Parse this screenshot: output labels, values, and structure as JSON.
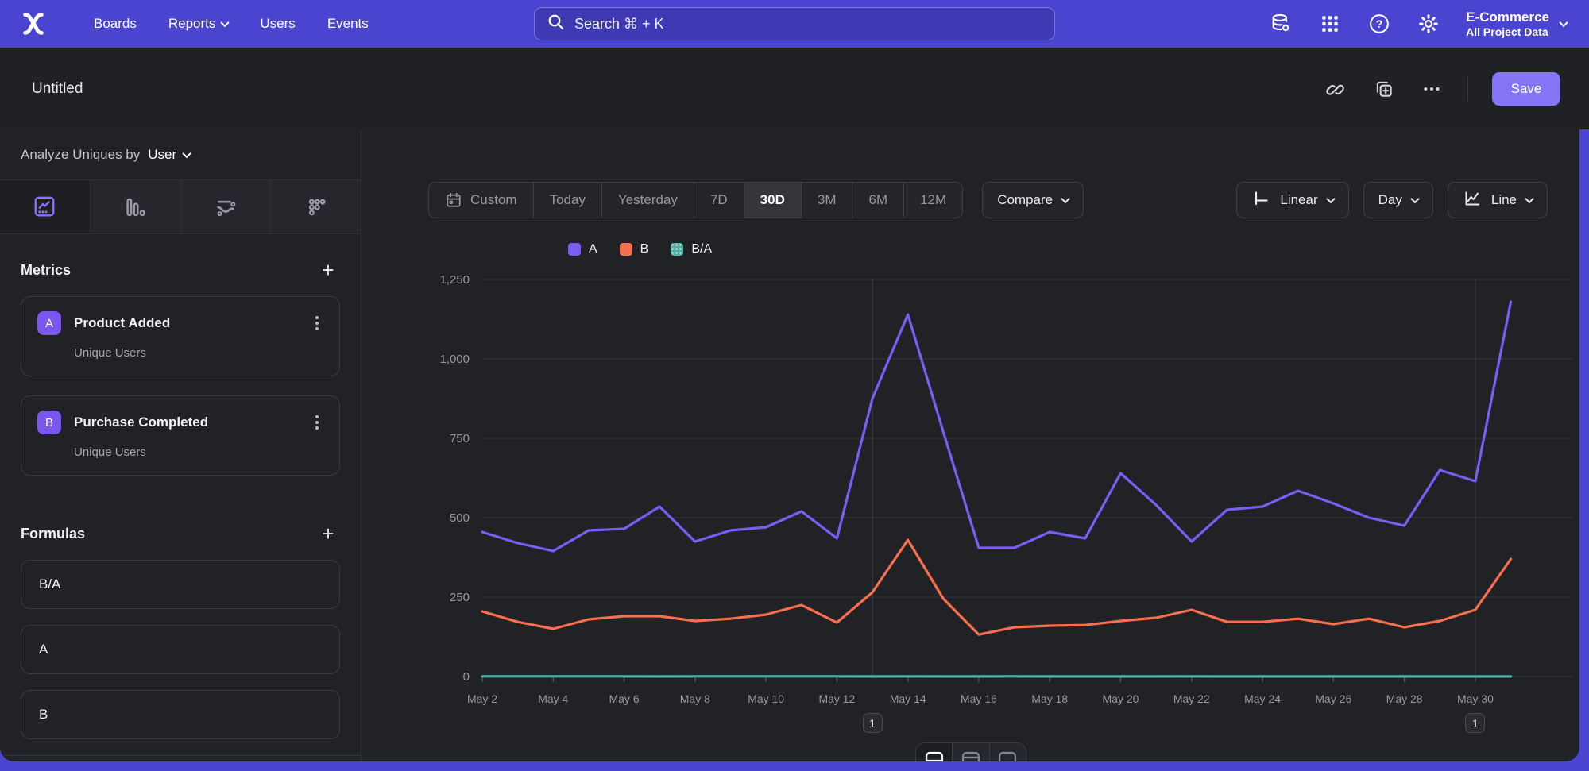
{
  "nav": {
    "items": [
      {
        "label": "Boards",
        "chevron": false
      },
      {
        "label": "Reports",
        "chevron": true
      },
      {
        "label": "Users",
        "chevron": false
      },
      {
        "label": "Events",
        "chevron": false
      }
    ],
    "search": {
      "placeholder": "Search  ⌘ + K"
    },
    "project": {
      "name": "E-Commerce",
      "subtitle": "All Project Data"
    }
  },
  "header": {
    "title": "Untitled",
    "save_label": "Save"
  },
  "sidebar": {
    "analyze": {
      "prefix": "Analyze Uniques by",
      "selected": "User"
    },
    "metrics": {
      "title": "Metrics",
      "items": [
        {
          "letter": "A",
          "name": "Product Added",
          "subtitle": "Unique Users"
        },
        {
          "letter": "B",
          "name": "Purchase Completed",
          "subtitle": "Unique Users"
        }
      ]
    },
    "formulas": {
      "title": "Formulas",
      "items": [
        "B/A",
        "A",
        "B"
      ]
    }
  },
  "toolbar": {
    "ranges": [
      "Custom",
      "Today",
      "Yesterday",
      "7D",
      "30D",
      "3M",
      "6M",
      "12M"
    ],
    "selected_range": "30D",
    "compare_label": "Compare",
    "scale_label": "Linear",
    "interval_label": "Day",
    "chart_type_label": "Line"
  },
  "chart_data": {
    "type": "line",
    "x": [
      "May 2",
      "May 3",
      "May 4",
      "May 5",
      "May 6",
      "May 7",
      "May 8",
      "May 9",
      "May 10",
      "May 11",
      "May 12",
      "May 13",
      "May 14",
      "May 15",
      "May 16",
      "May 17",
      "May 18",
      "May 19",
      "May 20",
      "May 21",
      "May 22",
      "May 23",
      "May 24",
      "May 25",
      "May 26",
      "May 27",
      "May 28",
      "May 29",
      "May 30",
      "May 31"
    ],
    "series": [
      {
        "name": "A",
        "color": "#7c5cf7",
        "values": [
          455,
          420,
          395,
          460,
          465,
          535,
          425,
          460,
          470,
          520,
          435,
          875,
          1140,
          770,
          405,
          405,
          455,
          435,
          640,
          540,
          425,
          525,
          535,
          585,
          545,
          500,
          475,
          650,
          615,
          1180
        ]
      },
      {
        "name": "B",
        "color": "#f96e4e",
        "values": [
          205,
          172,
          150,
          180,
          190,
          190,
          175,
          182,
          195,
          225,
          170,
          265,
          430,
          245,
          132,
          155,
          160,
          162,
          175,
          185,
          210,
          172,
          172,
          182,
          165,
          182,
          155,
          175,
          210,
          370
        ]
      },
      {
        "name": "B/A",
        "color": "#4fb2a7",
        "pattern": "dots",
        "values": [
          0.45,
          0.41,
          0.38,
          0.39,
          0.41,
          0.36,
          0.41,
          0.4,
          0.41,
          0.43,
          0.39,
          0.3,
          0.38,
          0.32,
          0.33,
          0.38,
          0.35,
          0.37,
          0.27,
          0.34,
          0.49,
          0.33,
          0.32,
          0.31,
          0.3,
          0.36,
          0.33,
          0.27,
          0.34,
          0.31
        ]
      }
    ],
    "ylim": [
      0,
      1250
    ],
    "yticks": [
      0,
      250,
      500,
      750,
      1000,
      1250
    ],
    "xtick_labels": [
      "May 2",
      "May 4",
      "May 6",
      "May 8",
      "May 10",
      "May 12",
      "May 14",
      "May 16",
      "May 18",
      "May 20",
      "May 22",
      "May 24",
      "May 26",
      "May 28",
      "May 30"
    ],
    "annotations": [
      {
        "x": "May 13",
        "label": "1"
      },
      {
        "x": "May 30",
        "label": "1"
      }
    ],
    "grid": true,
    "legend_position": "top-center"
  }
}
